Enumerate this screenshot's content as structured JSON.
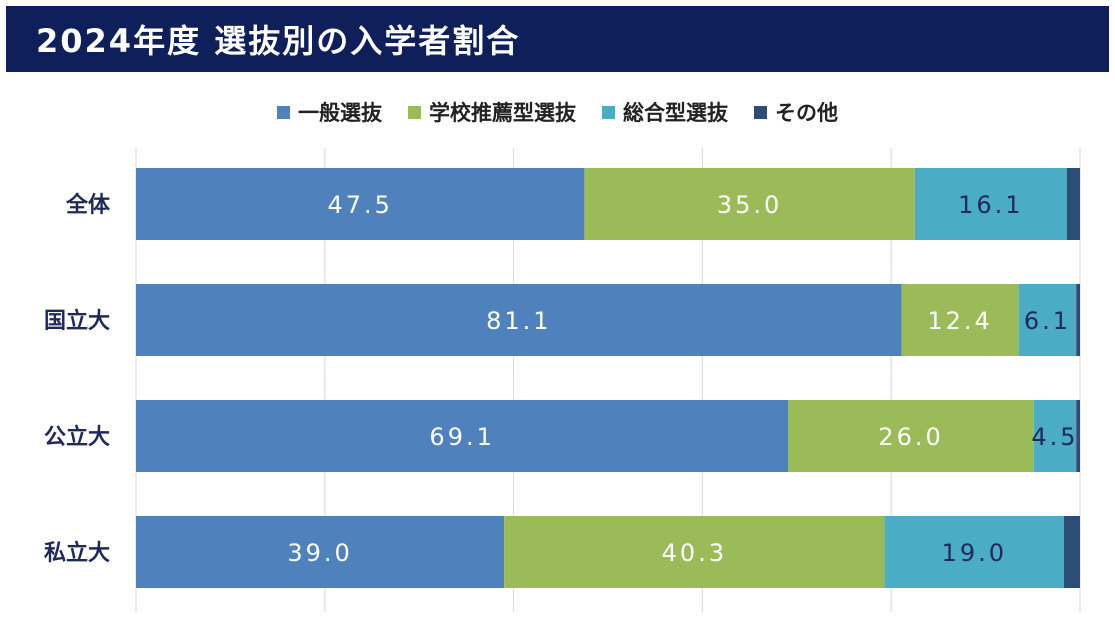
{
  "header": {
    "title": "2024年度 選抜別の入学者割合"
  },
  "colors": {
    "header_bg": "#0e1f5a",
    "general": "#4f81bd",
    "school_recommendation": "#9bbb59",
    "comprehensive": "#4bacc6",
    "other": "#2c4d75",
    "label_light": "#ffffff",
    "label_dark": "#1f2a5a",
    "category_label": "#1f2a5a",
    "grid": "#d9d9d9"
  },
  "chart_data": {
    "type": "bar",
    "orientation": "horizontal",
    "stacked": true,
    "title": "2024年度 選抜別の入学者割合",
    "categories": [
      "全体",
      "国立大",
      "公立大",
      "私立大"
    ],
    "series": [
      {
        "name": "一般選抜",
        "color": "#4f81bd",
        "values": [
          47.5,
          81.1,
          69.1,
          39.0
        ],
        "labels": [
          "47.5",
          "81.1",
          "69.1",
          "39.0"
        ]
      },
      {
        "name": "学校推薦型選抜",
        "color": "#9bbb59",
        "values": [
          35.0,
          12.4,
          26.0,
          40.3
        ],
        "labels": [
          "35.0",
          "12.4",
          "26.0",
          "40.3"
        ]
      },
      {
        "name": "総合型選抜",
        "color": "#4bacc6",
        "values": [
          16.1,
          6.1,
          4.5,
          19.0
        ],
        "labels": [
          "16.1",
          "6.1",
          "4.5",
          "19.0"
        ]
      },
      {
        "name": "その他",
        "color": "#2c4d75",
        "values": [
          1.4,
          0.4,
          0.4,
          1.7
        ],
        "labels": [
          "",
          "",
          "",
          ""
        ]
      }
    ],
    "xlim": [
      0,
      100
    ],
    "grid": true,
    "legend": "top-center"
  }
}
